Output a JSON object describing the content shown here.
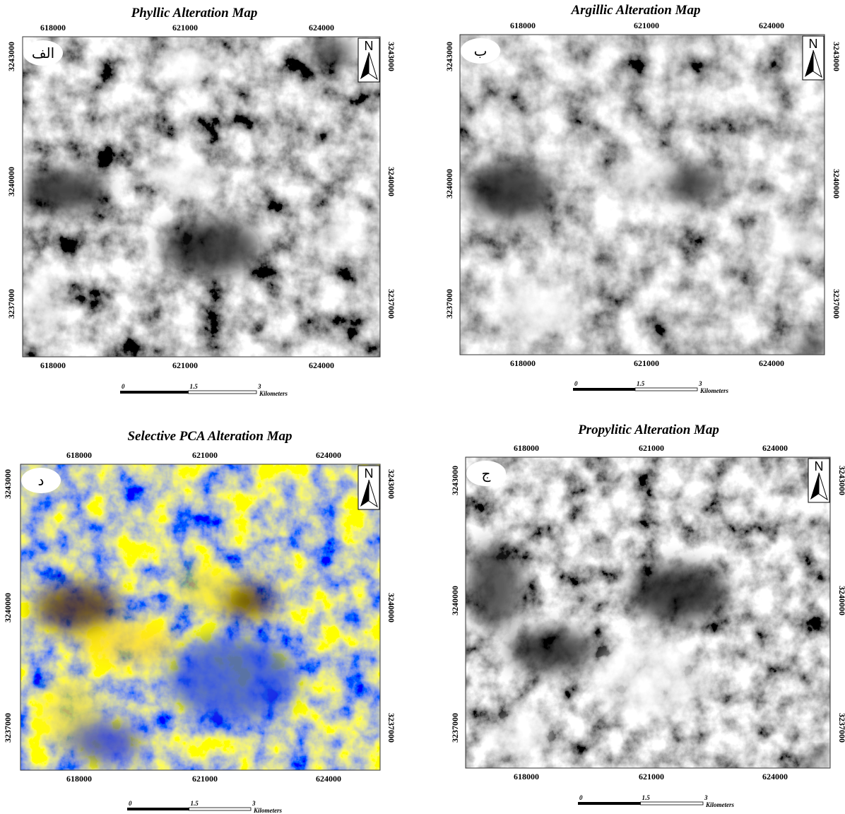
{
  "maps": [
    {
      "title": "Phyllic Alteration Map",
      "label": "الف",
      "xticks": [
        618000,
        621000,
        624000
      ],
      "yticks": [
        3243000,
        3240000,
        3237000
      ],
      "north": "N",
      "scale": {
        "ticks": [
          "0",
          "1.5",
          "3"
        ],
        "unit": "Kilometers"
      }
    },
    {
      "title": "Argillic Alteration Map",
      "label": "ب",
      "xticks": [
        618000,
        621000,
        624000
      ],
      "yticks": [
        3243000,
        3240000,
        3237000
      ],
      "north": "N",
      "scale": {
        "ticks": [
          "0",
          "1.5",
          "3"
        ],
        "unit": "Kilometers"
      }
    },
    {
      "title": "Selective PCA Alteration Map",
      "label": "د",
      "xticks": [
        618000,
        621000,
        624000
      ],
      "yticks": [
        3243000,
        3240000,
        3237000
      ],
      "north": "N",
      "scale": {
        "ticks": [
          "0",
          "1.5",
          "3"
        ],
        "unit": "Kilometers"
      }
    },
    {
      "title": "Propylitic Alteration Map",
      "label": "ج",
      "xticks": [
        618000,
        621000,
        624000
      ],
      "yticks": [
        3243000,
        3240000,
        3237000
      ],
      "north": "N",
      "scale": {
        "ticks": [
          "0",
          "1.5",
          "3"
        ],
        "unit": "Kilometers"
      }
    }
  ]
}
